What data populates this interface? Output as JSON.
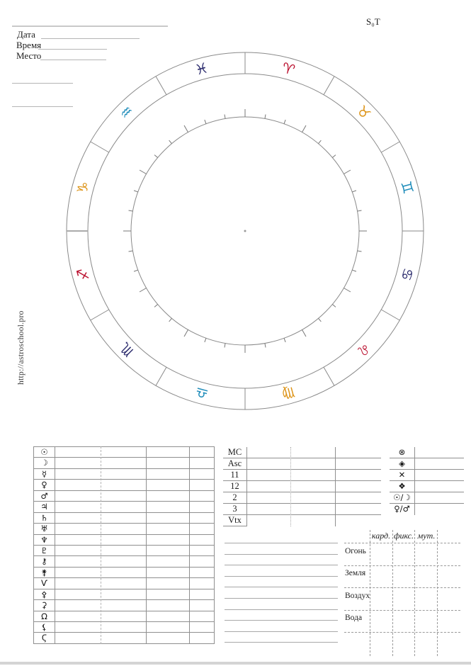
{
  "header": {
    "fields": [
      {
        "label": "Дата"
      },
      {
        "label": "Время"
      },
      {
        "label": "Место"
      }
    ],
    "sidereal_time_label": "S₀T"
  },
  "watermark_url": "http://astroschool.pro",
  "wheel": {
    "element_colors": {
      "fire": "#bb1230",
      "earth": "#dd9418",
      "air": "#1e8cba",
      "water": "#2c2c6e"
    },
    "signs": [
      {
        "name": "aries",
        "glyph": "♈",
        "element": "fire"
      },
      {
        "name": "taurus",
        "glyph": "♉",
        "element": "earth"
      },
      {
        "name": "gemini",
        "glyph": "♊",
        "element": "air"
      },
      {
        "name": "cancer",
        "glyph": "♋",
        "element": "water"
      },
      {
        "name": "leo",
        "glyph": "♌",
        "element": "fire"
      },
      {
        "name": "virgo",
        "glyph": "♍",
        "element": "earth"
      },
      {
        "name": "libra",
        "glyph": "♎",
        "element": "air"
      },
      {
        "name": "scorpio",
        "glyph": "♏",
        "element": "water"
      },
      {
        "name": "sagittarius",
        "glyph": "♐",
        "element": "fire"
      },
      {
        "name": "capricorn",
        "glyph": "♑",
        "element": "earth"
      },
      {
        "name": "aquarius",
        "glyph": "♒",
        "element": "air"
      },
      {
        "name": "pisces",
        "glyph": "♓",
        "element": "water"
      }
    ]
  },
  "planet_table": {
    "rows": [
      {
        "name": "sun",
        "glyph": "☉"
      },
      {
        "name": "moon",
        "glyph": "☽"
      },
      {
        "name": "mercury",
        "glyph": "☿"
      },
      {
        "name": "venus",
        "glyph": "♀"
      },
      {
        "name": "mars",
        "glyph": "♂"
      },
      {
        "name": "jupiter",
        "glyph": "♃"
      },
      {
        "name": "saturn",
        "glyph": "♄"
      },
      {
        "name": "uranus",
        "glyph": "♅"
      },
      {
        "name": "neptune",
        "glyph": "♆"
      },
      {
        "name": "pluto",
        "glyph": "♇"
      },
      {
        "name": "chiron",
        "glyph": "⚷"
      },
      {
        "name": "proserpina",
        "glyph": "⚵"
      },
      {
        "name": "south-node-ketu",
        "glyph": "Ѵ"
      },
      {
        "name": "pallas",
        "glyph": "⚴"
      },
      {
        "name": "ceres",
        "glyph": "⚳"
      },
      {
        "name": "north-node-rahu",
        "glyph": "Ω"
      },
      {
        "name": "lilith-black-moon",
        "glyph": "⚸"
      },
      {
        "name": "selena-white-moon",
        "glyph": "Ϛ"
      }
    ]
  },
  "houses_table": {
    "rows": [
      "MC",
      "Asc",
      "11",
      "12",
      "2",
      "3",
      "Vtx"
    ]
  },
  "points_table": {
    "rows": [
      {
        "name": "part-of-fortune",
        "glyph": "⊗"
      },
      {
        "name": "selena-point",
        "glyph": "◈"
      },
      {
        "name": "cross-point",
        "glyph": "✕"
      },
      {
        "name": "lilith-point",
        "glyph": "❖"
      },
      {
        "name": "sun-moon-ratio",
        "glyph": "☉/☽"
      },
      {
        "name": "venus-mars-ratio",
        "glyph": "♀/♂"
      }
    ]
  },
  "elements_grid": {
    "quality_headers": [
      "кард.",
      "фикс.",
      "мут."
    ],
    "element_rows": [
      "Огонь",
      "Земля",
      "Воздух",
      "Вода"
    ]
  }
}
